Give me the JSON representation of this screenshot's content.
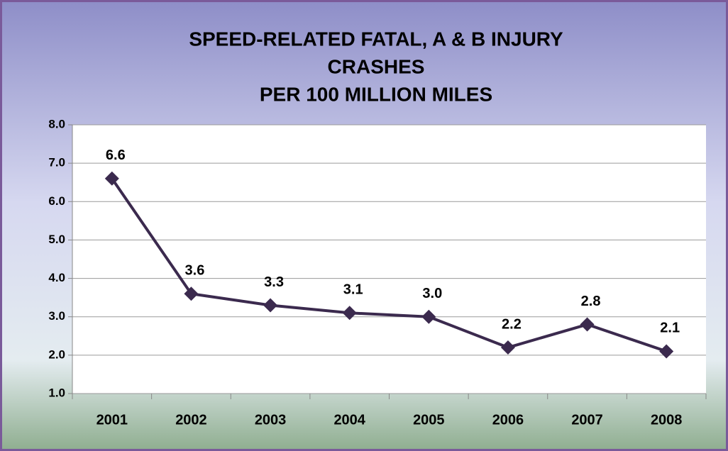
{
  "chart_data": {
    "type": "line",
    "title": [
      "SPEED-RELATED FATAL, A & B INJURY",
      "CRASHES",
      "PER 100 MILLION MILES"
    ],
    "categories": [
      "2001",
      "2002",
      "2003",
      "2004",
      "2005",
      "2006",
      "2007",
      "2008"
    ],
    "series": [
      {
        "color": "#3b2a4e",
        "values": [
          6.6,
          3.6,
          3.3,
          3.1,
          3.0,
          2.2,
          2.8,
          2.1
        ],
        "value_labels": [
          "6.6",
          "3.6",
          "3.3",
          "3.1",
          "3.0",
          "2.2",
          "2.8",
          "2.1"
        ]
      }
    ],
    "ylim": [
      1,
      8
    ],
    "yticks": [
      {
        "value": 1,
        "label": "1.0"
      },
      {
        "value": 2,
        "label": "2.0"
      },
      {
        "value": 3,
        "label": "3.0"
      },
      {
        "value": 4,
        "label": "4.0"
      },
      {
        "value": 5,
        "label": "5.0"
      },
      {
        "value": 6,
        "label": "6.0"
      },
      {
        "value": 7,
        "label": "7.0"
      },
      {
        "value": 8,
        "label": "8.0"
      }
    ],
    "grid": true
  }
}
